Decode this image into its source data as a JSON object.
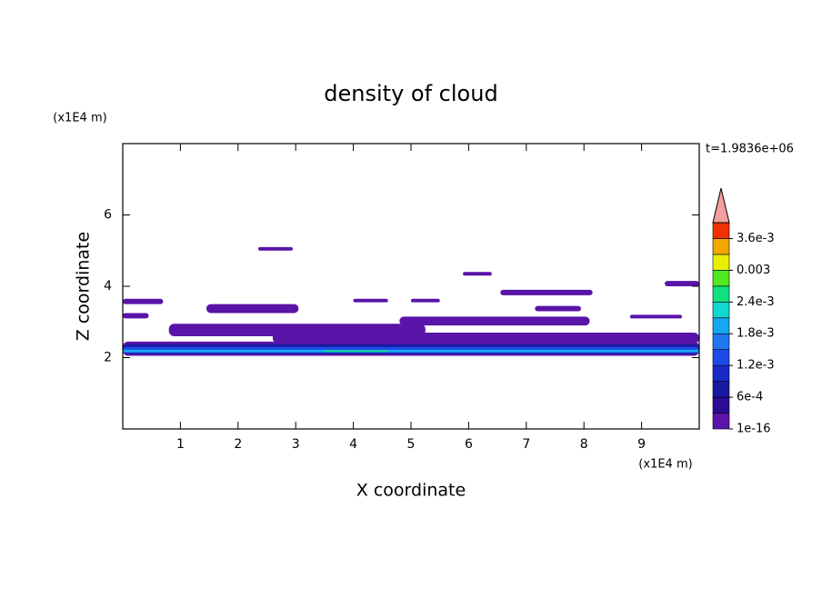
{
  "chart_data": {
    "type": "contour",
    "title": "density of cloud",
    "xlabel": "X coordinate",
    "ylabel": "Z coordinate",
    "x_unit": "(x1E4 m)",
    "y_unit": "(x1E4 m)",
    "time_label": "t=1.9836e+06",
    "xlim": [
      0,
      10
    ],
    "ylim": [
      0,
      8
    ],
    "xticks": [
      1,
      2,
      3,
      4,
      5,
      6,
      7,
      8,
      9
    ],
    "yticks": [
      2,
      4,
      6
    ],
    "colorbar": {
      "lim": [
        1e-16,
        0.0039
      ],
      "colors": [
        "#5a14a8",
        "#2a0c96",
        "#1a1a9e",
        "#1a2ac8",
        "#1e4ae8",
        "#1e78f0",
        "#14a8f0",
        "#10d8d0",
        "#10e080",
        "#50e820",
        "#e8f000",
        "#f0a800",
        "#f03000"
      ],
      "extend_color": "#f4a0a0",
      "ticks": [
        1e-16,
        {
          "value": 0.0006,
          "label": "6e-4"
        },
        {
          "value": 0.0012,
          "label": "1.2e-3"
        },
        {
          "value": 0.0018,
          "label": "1.8e-3"
        },
        {
          "value": 0.0024,
          "label": "2.4e-3"
        },
        0.003,
        {
          "value": 0.0036,
          "label": "3.6e-3"
        }
      ]
    },
    "clouds": [
      {
        "x": [
          0,
          10
        ],
        "z": [
          2.05,
          2.45
        ],
        "density": 0.00015
      },
      {
        "x": [
          2.6,
          10
        ],
        "z": [
          2.4,
          2.7
        ],
        "density": 0.00015
      },
      {
        "x": [
          0.8,
          5.25
        ],
        "z": [
          2.6,
          2.95
        ],
        "density": 0.00015
      },
      {
        "x": [
          4.8,
          8.1
        ],
        "z": [
          2.9,
          3.15
        ],
        "density": 0.00015
      },
      {
        "x": [
          0,
          0.45
        ],
        "z": [
          3.1,
          3.25
        ],
        "density": 0.00015
      },
      {
        "x": [
          8.8,
          9.7
        ],
        "z": [
          3.1,
          3.2
        ],
        "density": 0.00015
      },
      {
        "x": [
          1.45,
          3.05
        ],
        "z": [
          3.25,
          3.5
        ],
        "density": 0.00015
      },
      {
        "x": [
          7.15,
          7.95
        ],
        "z": [
          3.3,
          3.45
        ],
        "density": 0.00015
      },
      {
        "x": [
          0,
          0.7
        ],
        "z": [
          3.5,
          3.65
        ],
        "density": 0.00015
      },
      {
        "x": [
          4.0,
          4.6
        ],
        "z": [
          3.55,
          3.65
        ],
        "density": 0.00015
      },
      {
        "x": [
          5.0,
          5.5
        ],
        "z": [
          3.55,
          3.65
        ],
        "density": 0.00015
      },
      {
        "x": [
          6.55,
          8.15
        ],
        "z": [
          3.75,
          3.9
        ],
        "density": 0.00015
      },
      {
        "x": [
          9.4,
          10
        ],
        "z": [
          4.0,
          4.15
        ],
        "density": 0.00015
      },
      {
        "x": [
          5.9,
          6.4
        ],
        "z": [
          4.3,
          4.4
        ],
        "density": 0.00015
      },
      {
        "x": [
          2.35,
          2.95
        ],
        "z": [
          5.0,
          5.1
        ],
        "density": 0.00015
      },
      {
        "x": [
          0,
          10
        ],
        "z": [
          2.1,
          2.38
        ],
        "density": 0.00075
      },
      {
        "x": [
          0,
          10
        ],
        "z": [
          2.13,
          2.3
        ],
        "density": 0.00135
      },
      {
        "x": [
          0,
          10
        ],
        "z": [
          2.15,
          2.22
        ],
        "density": 0.00195
      },
      {
        "x": [
          3.5,
          4.6
        ],
        "z": [
          2.16,
          2.2
        ],
        "density": 0.00255
      }
    ]
  }
}
